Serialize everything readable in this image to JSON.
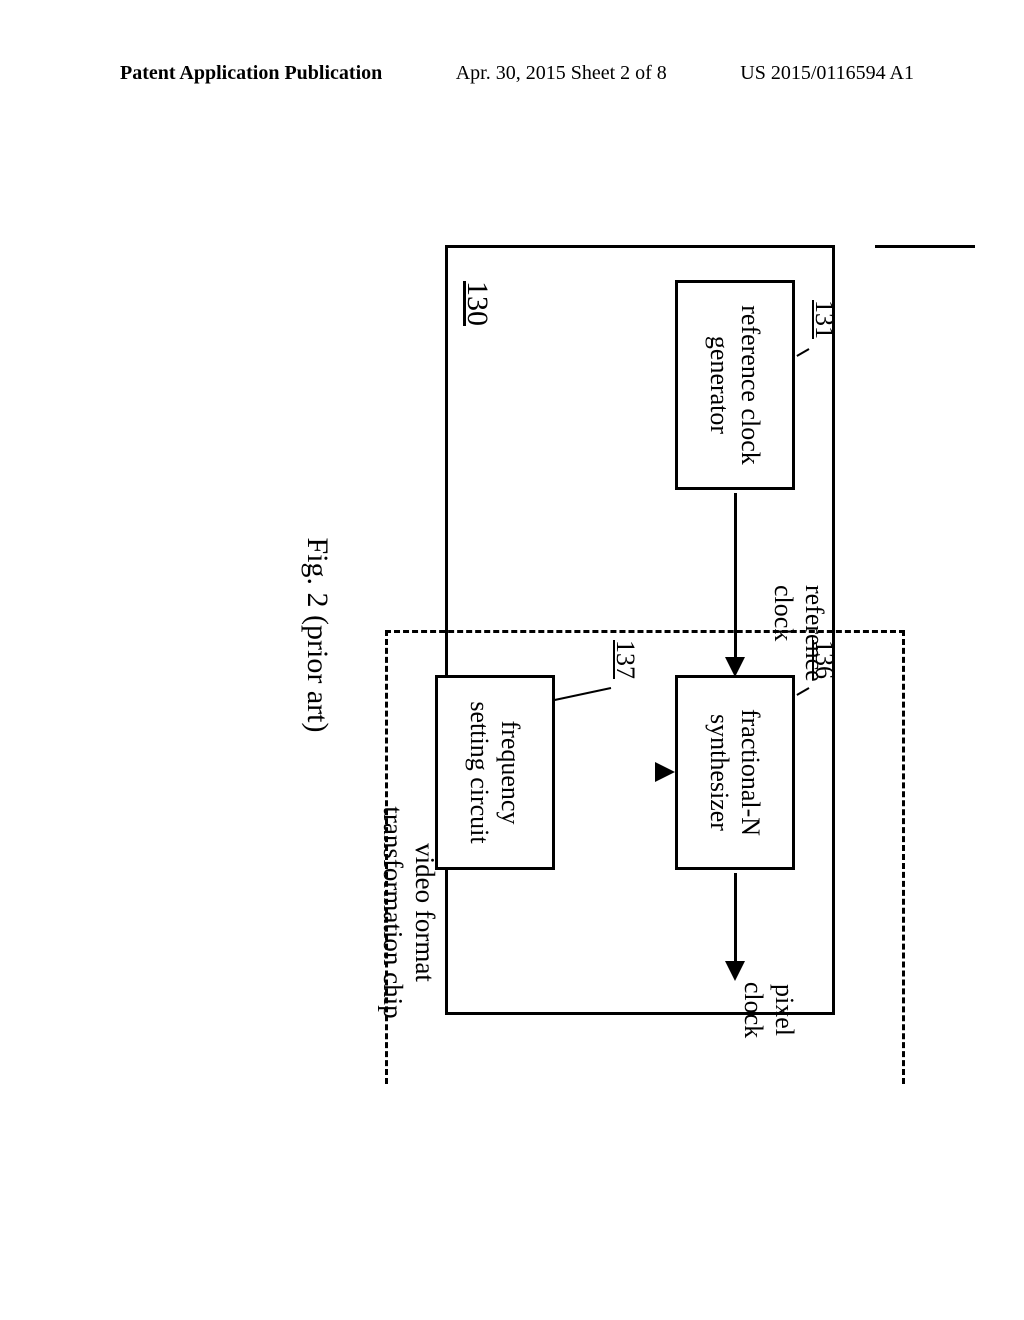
{
  "header": {
    "left": "Patent Application Publication",
    "mid": "Apr. 30, 2015  Sheet 2 of 8",
    "right": "US 2015/0116594 A1"
  },
  "diagram": {
    "blocks": {
      "ref_clk_gen": {
        "label": "reference clock\ngenerator",
        "num": "131"
      },
      "frac_n": {
        "label": "fractional-N\nsynthesizer",
        "num": "136"
      },
      "freq_set": {
        "label": "frequency\nsetting circuit",
        "num": "137"
      }
    },
    "signals": {
      "ref_clock": "reference\nclock",
      "pixel_clock": "pixel\nclock"
    },
    "main_num": "130",
    "chip_label": "video format\ntransformation chip",
    "caption": "Fig. 2 (prior art)",
    "colors": {
      "stroke": "#000000",
      "bg": "#ffffff"
    }
  }
}
